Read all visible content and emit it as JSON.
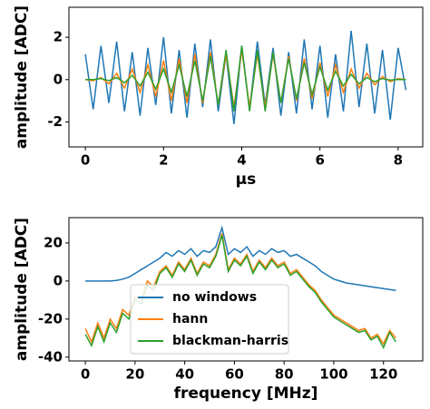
{
  "chart_data": [
    {
      "type": "line",
      "xlabel": "μs",
      "ylabel": "amplitude [ADC]",
      "xlim": [
        -0.42,
        8.63
      ],
      "ylim": [
        -3.18,
        3.42
      ],
      "xticks": [
        0,
        2,
        4,
        6,
        8
      ],
      "yticks": [
        -2,
        0,
        2
      ],
      "x": [
        0,
        0.2,
        0.4,
        0.6,
        0.8,
        1.0,
        1.2,
        1.4,
        1.6,
        1.8,
        2.0,
        2.2,
        2.4,
        2.6,
        2.8,
        3.0,
        3.2,
        3.4,
        3.6,
        3.8,
        4.0,
        4.2,
        4.4,
        4.6,
        4.8,
        5.0,
        5.2,
        5.4,
        5.6,
        5.8,
        6.0,
        6.2,
        6.4,
        6.6,
        6.8,
        7.0,
        7.2,
        7.4,
        7.6,
        7.8,
        8.0,
        8.2
      ],
      "series": [
        {
          "color": "#1f77b4",
          "values": [
            1.2,
            -1.4,
            1.6,
            -1.1,
            1.8,
            -1.5,
            1.3,
            -1.7,
            1.5,
            -1.2,
            2.0,
            -1.6,
            1.4,
            -1.8,
            1.7,
            -1.3,
            1.9,
            -1.5,
            1.2,
            -2.1,
            1.6,
            -1.4,
            1.8,
            -1.2,
            1.5,
            -1.7,
            1.3,
            -1.6,
            1.9,
            -1.4,
            1.6,
            -1.8,
            1.2,
            -1.5,
            2.3,
            -1.3,
            1.7,
            -1.6,
            1.4,
            -1.9,
            1.5,
            -0.5
          ]
        },
        {
          "color": "#ff7f0e",
          "values": [
            0,
            -0.05,
            0.1,
            -0.2,
            0.3,
            -0.4,
            0.5,
            -0.6,
            0.7,
            -0.8,
            0.9,
            -1.0,
            1.0,
            -1.1,
            1.2,
            -1.1,
            1.3,
            -1.2,
            1.2,
            -1.3,
            1.4,
            -1.3,
            1.2,
            -1.3,
            1.2,
            -1.1,
            1.1,
            -1.0,
            1.0,
            -0.9,
            0.8,
            -0.8,
            0.7,
            -0.6,
            0.5,
            -0.4,
            0.3,
            -0.25,
            0.15,
            -0.1,
            0.05,
            0
          ]
        },
        {
          "color": "#2ca02c",
          "values": [
            0,
            0,
            0.05,
            -0.05,
            0.1,
            -0.15,
            0.2,
            -0.3,
            0.35,
            -0.45,
            0.5,
            -0.6,
            0.7,
            -0.8,
            0.9,
            -1.0,
            1.1,
            -1.2,
            1.4,
            -1.5,
            1.6,
            -1.5,
            1.4,
            -1.5,
            1.3,
            -1.1,
            1.0,
            -0.9,
            0.8,
            -0.7,
            0.6,
            -0.5,
            0.4,
            -0.3,
            0.25,
            -0.2,
            0.1,
            -0.1,
            0.05,
            -0.02,
            0.01,
            0
          ]
        }
      ]
    },
    {
      "type": "line",
      "xlabel": "frequency [MHz]",
      "ylabel": "amplitude [ADC]",
      "xlim": [
        -6.6,
        135.8
      ],
      "ylim": [
        -42,
        33.3
      ],
      "xticks": [
        0,
        20,
        40,
        60,
        80,
        100,
        120
      ],
      "yticks": [
        -40,
        -20,
        0,
        20
      ],
      "legend": "lower center",
      "x": [
        0,
        2.5,
        5,
        7.5,
        10,
        12.5,
        15,
        17.5,
        20,
        22.5,
        25,
        27.5,
        30,
        32.5,
        35,
        37.5,
        40,
        42.5,
        45,
        47.5,
        50,
        52.5,
        55,
        57.5,
        60,
        62.5,
        65,
        67.5,
        70,
        72.5,
        75,
        77.5,
        80,
        82.5,
        85,
        87.5,
        90,
        92.5,
        95,
        97.5,
        100,
        102.5,
        105,
        107.5,
        110,
        112.5,
        115,
        117.5,
        120,
        122.5,
        125
      ],
      "series": [
        {
          "name": "no windows",
          "color": "#1f77b4",
          "values": [
            0,
            0,
            0,
            0,
            0,
            0.3,
            1,
            2,
            4,
            6,
            8,
            10,
            12,
            15,
            13,
            16,
            14,
            17,
            13,
            16,
            15,
            18,
            28,
            14,
            17,
            15,
            18,
            13,
            16,
            14,
            17,
            15,
            16,
            13,
            14,
            12,
            10,
            8,
            5,
            3,
            1,
            0,
            -1,
            -1.5,
            -2,
            -2.5,
            -3,
            -3.5,
            -4,
            -4.5,
            -5
          ]
        },
        {
          "name": "hann",
          "color": "#ff7f0e",
          "values": [
            -25,
            -32,
            -22,
            -30,
            -20,
            -25,
            -15,
            -18,
            -8,
            -10,
            0,
            -3,
            5,
            8,
            3,
            10,
            6,
            12,
            4,
            10,
            8,
            14,
            25,
            6,
            12,
            9,
            14,
            5,
            11,
            7,
            12,
            8,
            10,
            4,
            6,
            2,
            -2,
            -5,
            -10,
            -14,
            -18,
            -20,
            -22,
            -24,
            -26,
            -25,
            -30,
            -28,
            -33,
            -26,
            -30
          ]
        },
        {
          "name": "blackman-harris",
          "color": "#2ca02c",
          "values": [
            -28,
            -34,
            -24,
            -32,
            -22,
            -27,
            -17,
            -20,
            -10,
            -12,
            -2,
            -5,
            4,
            7,
            2,
            9,
            5,
            11,
            3,
            9,
            7,
            13,
            24,
            5,
            11,
            8,
            13,
            4,
            10,
            6,
            11,
            7,
            9,
            3,
            5,
            1,
            -3,
            -6,
            -11,
            -15,
            -19,
            -21,
            -23,
            -25,
            -27,
            -26,
            -31,
            -29,
            -35,
            -27,
            -32
          ]
        }
      ]
    }
  ]
}
